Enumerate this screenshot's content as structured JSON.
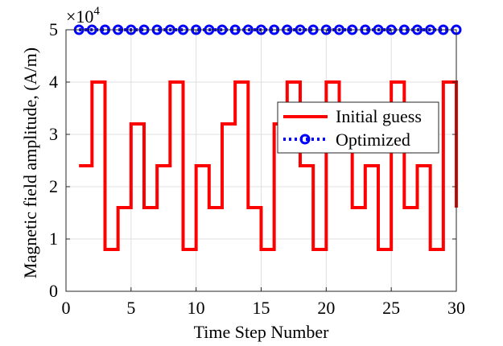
{
  "chart_data": {
    "type": "line",
    "xlabel": "Time Step Number",
    "ylabel": "Magnetic field amplitude, (A/m)",
    "y_exponent_label": "×10",
    "y_exponent_power": "4",
    "y_multiplier": 10000,
    "xlim": [
      0,
      30
    ],
    "ylim": [
      0,
      50000
    ],
    "x_ticks": [
      0,
      5,
      10,
      15,
      20,
      25,
      30
    ],
    "y_ticks": [
      0,
      1,
      2,
      3,
      4,
      5
    ],
    "grid": true,
    "legend_position": "right",
    "series": [
      {
        "name": "Initial guess",
        "style": "stairs",
        "color": "#ff0000",
        "x": [
          1,
          2,
          3,
          4,
          5,
          6,
          7,
          8,
          9,
          10,
          11,
          12,
          13,
          14,
          15,
          16,
          17,
          18,
          19,
          20,
          21,
          22,
          23,
          24,
          25,
          26,
          27,
          28,
          29,
          30
        ],
        "values": [
          24000,
          40000,
          8000,
          16000,
          32000,
          16000,
          24000,
          40000,
          8000,
          24000,
          16000,
          32000,
          40000,
          16000,
          8000,
          32000,
          40000,
          24000,
          8000,
          40000,
          32000,
          16000,
          24000,
          8000,
          40000,
          16000,
          24000,
          8000,
          40000,
          16000
        ]
      },
      {
        "name": "Optimized",
        "style": "dotted-circles",
        "color": "#0000ff",
        "x": [
          1,
          2,
          3,
          4,
          5,
          6,
          7,
          8,
          9,
          10,
          11,
          12,
          13,
          14,
          15,
          16,
          17,
          18,
          19,
          20,
          21,
          22,
          23,
          24,
          25,
          26,
          27,
          28,
          29,
          30
        ],
        "values": [
          50000,
          50000,
          50000,
          50000,
          50000,
          50000,
          50000,
          50000,
          50000,
          50000,
          50000,
          50000,
          50000,
          50000,
          50000,
          50000,
          50000,
          50000,
          50000,
          50000,
          50000,
          50000,
          50000,
          50000,
          50000,
          50000,
          50000,
          50000,
          50000,
          50000
        ]
      }
    ]
  }
}
